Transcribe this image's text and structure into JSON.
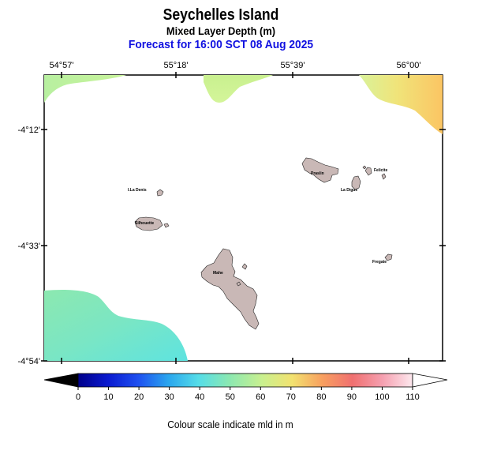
{
  "header": {
    "title": "Seychelles Island",
    "subtitle": "Mixed Layer Depth (m)",
    "forecast": "Forecast for  16:00 SCT 08 Aug 2025"
  },
  "map": {
    "lon_ticks": [
      "54°57'",
      "55°18'",
      "55°39'",
      "56°00'"
    ],
    "lat_ticks": [
      "-4°12'",
      "-4°33'",
      "-4°54'"
    ],
    "islands": [
      {
        "name": "Praslin"
      },
      {
        "name": "Felicite"
      },
      {
        "name": "La Digue"
      },
      {
        "name": "I.La Denis"
      },
      {
        "name": "Silhouette"
      },
      {
        "name": "Mahe"
      },
      {
        "name": "Fregate"
      }
    ],
    "colors": {
      "land": "#c9b8b6",
      "sea": "#ffffff"
    }
  },
  "colorbar": {
    "ticks": [
      "0",
      "10",
      "20",
      "30",
      "40",
      "50",
      "60",
      "70",
      "80",
      "90",
      "100",
      "110"
    ],
    "min": 0,
    "max": 110,
    "caption": "Colour scale indicate mld in m"
  }
}
